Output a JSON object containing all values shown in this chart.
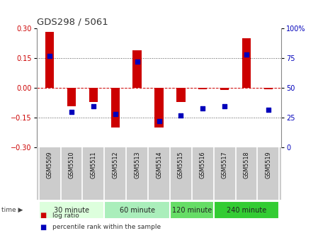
{
  "title": "GDS298 / 5061",
  "samples": [
    "GSM5509",
    "GSM5510",
    "GSM5511",
    "GSM5512",
    "GSM5513",
    "GSM5514",
    "GSM5515",
    "GSM5516",
    "GSM5517",
    "GSM5518",
    "GSM5519"
  ],
  "log_ratio": [
    0.285,
    -0.09,
    -0.07,
    -0.2,
    0.19,
    -0.2,
    -0.07,
    -0.005,
    -0.01,
    0.25,
    -0.005
  ],
  "percentile": [
    77,
    30,
    35,
    28,
    72,
    22,
    27,
    33,
    35,
    78,
    32
  ],
  "ylim_left": [
    -0.3,
    0.3
  ],
  "ylim_right": [
    0,
    100
  ],
  "yticks_left": [
    -0.3,
    -0.15,
    0,
    0.15,
    0.3
  ],
  "yticks_right": [
    0,
    25,
    50,
    75,
    100
  ],
  "hlines_dotted": [
    -0.15,
    0.15
  ],
  "hline_dashed": 0,
  "bar_color": "#cc0000",
  "dot_color": "#0000bb",
  "groups": [
    {
      "label": "30 minute",
      "start": 0,
      "end": 3,
      "color": "#ddffdd"
    },
    {
      "label": "60 minute",
      "start": 3,
      "end": 6,
      "color": "#aaeebb"
    },
    {
      "label": "120 minute",
      "start": 6,
      "end": 8,
      "color": "#66dd66"
    },
    {
      "label": "240 minute",
      "start": 8,
      "end": 11,
      "color": "#33cc33"
    }
  ],
  "legend_bar_label": "log ratio",
  "legend_dot_label": "percentile rank within the sample",
  "time_label": "time",
  "bg_color": "#ffffff",
  "label_panel_color": "#cccccc",
  "bar_width": 0.4
}
